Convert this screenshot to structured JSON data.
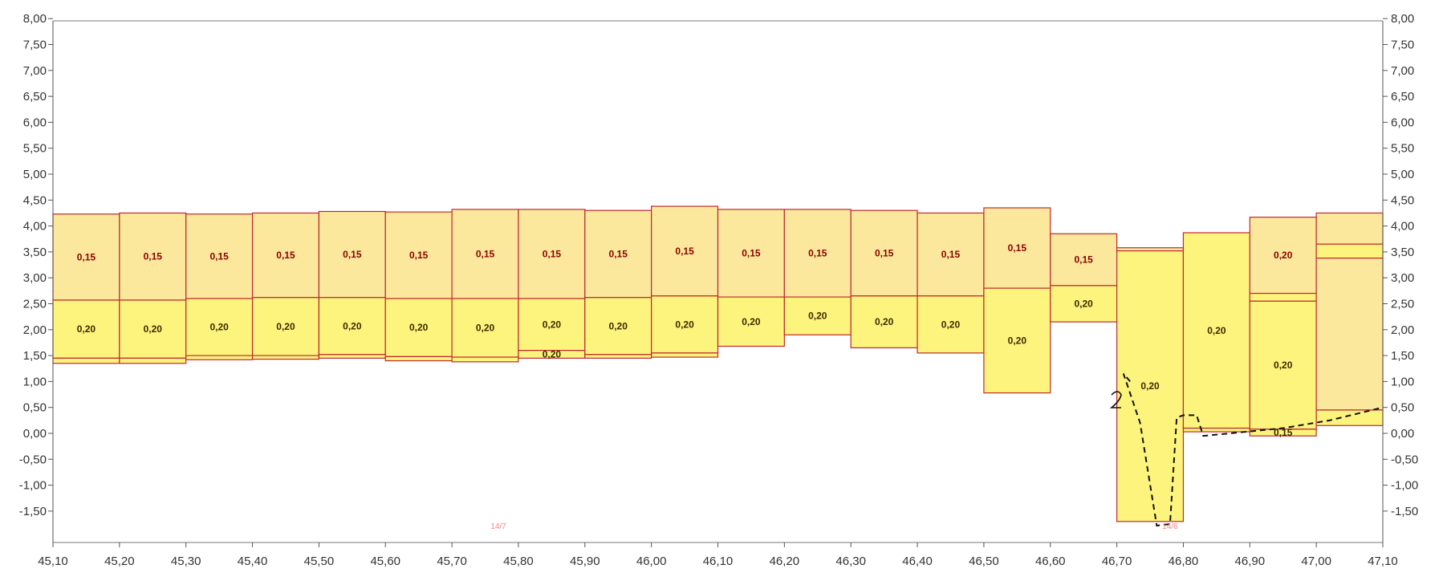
{
  "chart_data": {
    "type": "bar",
    "title": "",
    "xlabel": "",
    "ylabel": "",
    "xlim": [
      45.1,
      47.1
    ],
    "ylim": [
      -2.0,
      8.0
    ],
    "grid": false,
    "colors": {
      "upper_fill": "#fbe89c",
      "lower_fill": "#fdf47e",
      "outline": "#c0282d",
      "label_upper": "#8b0000",
      "label_lower": "#3a2a00"
    },
    "x_ticks": [
      "45,10",
      "45,20",
      "45,30",
      "45,40",
      "45,50",
      "45,60",
      "45,70",
      "45,80",
      "45,90",
      "46,00",
      "46,10",
      "46,20",
      "46,30",
      "46,40",
      "46,50",
      "46,60",
      "46,70",
      "46,80",
      "46,90",
      "47,00",
      "47,10"
    ],
    "y_ticks_left": [
      "8,00",
      "7,50",
      "7,00",
      "6,50",
      "6,00",
      "5,50",
      "5,00",
      "4,50",
      "4,00",
      "3,50",
      "3,00",
      "2,50",
      "2,00",
      "1,50",
      "1,00",
      "0,50",
      "0,00",
      "-0,50",
      "-1,00",
      "-1,50"
    ],
    "y_ticks_right": [
      "8,00",
      "7,50",
      "7,00",
      "6,50",
      "6,00",
      "5,50",
      "5,00",
      "4,50",
      "4,00",
      "3,50",
      "3,00",
      "2,50",
      "2,00",
      "1,50",
      "1,00",
      "0,50",
      "0,00",
      "-0,50",
      "-1,00",
      "-1,50"
    ],
    "columns": [
      {
        "x0": 45.1,
        "x1": 45.2,
        "segments": [
          {
            "from": 2.57,
            "to": 4.23,
            "label": "0,15",
            "kind": "upper"
          },
          {
            "from": 1.45,
            "to": 2.57,
            "label": "0,20",
            "kind": "lower"
          },
          {
            "from": 1.35,
            "to": 1.45,
            "label": "",
            "kind": "lower"
          }
        ]
      },
      {
        "x0": 45.2,
        "x1": 45.3,
        "segments": [
          {
            "from": 2.57,
            "to": 4.25,
            "label": "0,15",
            "kind": "upper"
          },
          {
            "from": 1.45,
            "to": 2.57,
            "label": "0,20",
            "kind": "lower"
          },
          {
            "from": 1.35,
            "to": 1.45,
            "label": "",
            "kind": "lower"
          }
        ]
      },
      {
        "x0": 45.3,
        "x1": 45.4,
        "segments": [
          {
            "from": 2.6,
            "to": 4.23,
            "label": "0,15",
            "kind": "upper"
          },
          {
            "from": 1.5,
            "to": 2.6,
            "label": "0,20",
            "kind": "lower"
          },
          {
            "from": 1.42,
            "to": 1.5,
            "label": "",
            "kind": "lower"
          }
        ]
      },
      {
        "x0": 45.4,
        "x1": 45.5,
        "segments": [
          {
            "from": 2.62,
            "to": 4.25,
            "label": "0,15",
            "kind": "upper"
          },
          {
            "from": 1.5,
            "to": 2.62,
            "label": "0,20",
            "kind": "lower"
          },
          {
            "from": 1.43,
            "to": 1.5,
            "label": "",
            "kind": "lower"
          }
        ]
      },
      {
        "x0": 45.5,
        "x1": 45.6,
        "segments": [
          {
            "from": 2.62,
            "to": 4.28,
            "label": "0,15",
            "kind": "upper"
          },
          {
            "from": 1.52,
            "to": 2.62,
            "label": "0,20",
            "kind": "lower"
          },
          {
            "from": 1.45,
            "to": 1.52,
            "label": "",
            "kind": "lower"
          }
        ]
      },
      {
        "x0": 45.6,
        "x1": 45.7,
        "segments": [
          {
            "from": 2.6,
            "to": 4.27,
            "label": "0,15",
            "kind": "upper"
          },
          {
            "from": 1.48,
            "to": 2.6,
            "label": "0,20",
            "kind": "lower"
          },
          {
            "from": 1.4,
            "to": 1.48,
            "label": "",
            "kind": "lower"
          }
        ]
      },
      {
        "x0": 45.7,
        "x1": 45.8,
        "segments": [
          {
            "from": 2.6,
            "to": 4.32,
            "label": "0,15",
            "kind": "upper"
          },
          {
            "from": 1.47,
            "to": 2.6,
            "label": "0,20",
            "kind": "lower"
          },
          {
            "from": 1.38,
            "to": 1.47,
            "label": "",
            "kind": "lower"
          }
        ]
      },
      {
        "x0": 45.8,
        "x1": 45.9,
        "segments": [
          {
            "from": 2.6,
            "to": 4.32,
            "label": "0,15",
            "kind": "upper"
          },
          {
            "from": 1.6,
            "to": 2.6,
            "label": "0,20",
            "kind": "lower"
          },
          {
            "from": 1.45,
            "to": 1.6,
            "label": "0,20",
            "kind": "lower"
          }
        ]
      },
      {
        "x0": 45.9,
        "x1": 46.0,
        "segments": [
          {
            "from": 2.62,
            "to": 4.3,
            "label": "0,15",
            "kind": "upper"
          },
          {
            "from": 1.52,
            "to": 2.62,
            "label": "0,20",
            "kind": "lower"
          },
          {
            "from": 1.45,
            "to": 1.52,
            "label": "",
            "kind": "lower"
          }
        ]
      },
      {
        "x0": 46.0,
        "x1": 46.1,
        "segments": [
          {
            "from": 2.65,
            "to": 4.38,
            "label": "0,15",
            "kind": "upper"
          },
          {
            "from": 1.55,
            "to": 2.65,
            "label": "0,20",
            "kind": "lower"
          },
          {
            "from": 1.47,
            "to": 1.55,
            "label": "",
            "kind": "lower"
          }
        ]
      },
      {
        "x0": 46.1,
        "x1": 46.2,
        "segments": [
          {
            "from": 2.63,
            "to": 4.32,
            "label": "0,15",
            "kind": "upper"
          },
          {
            "from": 1.68,
            "to": 2.63,
            "label": "0,20",
            "kind": "lower"
          }
        ]
      },
      {
        "x0": 46.2,
        "x1": 46.3,
        "segments": [
          {
            "from": 2.63,
            "to": 4.32,
            "label": "0,15",
            "kind": "upper"
          },
          {
            "from": 1.9,
            "to": 2.63,
            "label": "0,20",
            "kind": "lower"
          }
        ]
      },
      {
        "x0": 46.3,
        "x1": 46.4,
        "segments": [
          {
            "from": 2.65,
            "to": 4.3,
            "label": "0,15",
            "kind": "upper"
          },
          {
            "from": 1.65,
            "to": 2.65,
            "label": "0,20",
            "kind": "lower"
          }
        ]
      },
      {
        "x0": 46.4,
        "x1": 46.5,
        "segments": [
          {
            "from": 2.65,
            "to": 4.25,
            "label": "0,15",
            "kind": "upper"
          },
          {
            "from": 1.55,
            "to": 2.65,
            "label": "0,20",
            "kind": "lower"
          }
        ]
      },
      {
        "x0": 46.5,
        "x1": 46.6,
        "segments": [
          {
            "from": 2.8,
            "to": 4.35,
            "label": "0,15",
            "kind": "upper"
          },
          {
            "from": 0.78,
            "to": 2.8,
            "label": "0,20",
            "kind": "lower"
          }
        ]
      },
      {
        "x0": 46.6,
        "x1": 46.7,
        "segments": [
          {
            "from": 2.85,
            "to": 3.85,
            "label": "0,15",
            "kind": "upper"
          },
          {
            "from": 2.15,
            "to": 2.85,
            "label": "0,20",
            "kind": "lower"
          }
        ]
      },
      {
        "x0": 46.7,
        "x1": 46.8,
        "segments": [
          {
            "from": 3.52,
            "to": 3.58,
            "label": "",
            "kind": "upper"
          },
          {
            "from": -1.7,
            "to": 3.52,
            "label": "0,20",
            "kind": "lower"
          }
        ]
      },
      {
        "x0": 46.8,
        "x1": 46.9,
        "segments": [
          {
            "from": 0.1,
            "to": 3.87,
            "label": "0,20",
            "kind": "lower"
          },
          {
            "from": 0.03,
            "to": 0.1,
            "label": "",
            "kind": "lower"
          }
        ]
      },
      {
        "x0": 46.9,
        "x1": 47.0,
        "segments": [
          {
            "from": 2.7,
            "to": 4.17,
            "label": "0,20",
            "kind": "upper"
          },
          {
            "from": 2.55,
            "to": 2.7,
            "label": "",
            "kind": "lower"
          },
          {
            "from": 0.08,
            "to": 2.55,
            "label": "0,20",
            "kind": "lower"
          },
          {
            "from": -0.05,
            "to": 0.08,
            "label": "0,15",
            "kind": "lower"
          }
        ]
      },
      {
        "x0": 47.0,
        "x1": 47.1,
        "segments": [
          {
            "from": 3.65,
            "to": 4.25,
            "label": "",
            "kind": "upper"
          },
          {
            "from": 3.38,
            "to": 3.65,
            "label": "",
            "kind": "lower"
          },
          {
            "from": 0.45,
            "to": 3.38,
            "label": "",
            "kind": "upper"
          },
          {
            "from": 0.15,
            "to": 0.45,
            "label": "",
            "kind": "lower"
          }
        ]
      }
    ],
    "annotations": [
      {
        "text": "14/7",
        "x": 45.77,
        "y": -1.78
      },
      {
        "text": "14/6",
        "x": 46.78,
        "y": -1.78
      }
    ],
    "dashed_path": {
      "x": [
        46.72,
        46.71,
        46.735,
        46.76,
        46.78,
        46.79,
        46.8,
        46.82,
        46.83,
        46.95,
        47.02,
        47.1
      ],
      "y": [
        1.0,
        1.15,
        0.2,
        -1.78,
        -1.75,
        0.3,
        0.35,
        0.35,
        -0.05,
        0.1,
        0.25,
        0.5
      ]
    },
    "handwritten_mark": "2"
  }
}
